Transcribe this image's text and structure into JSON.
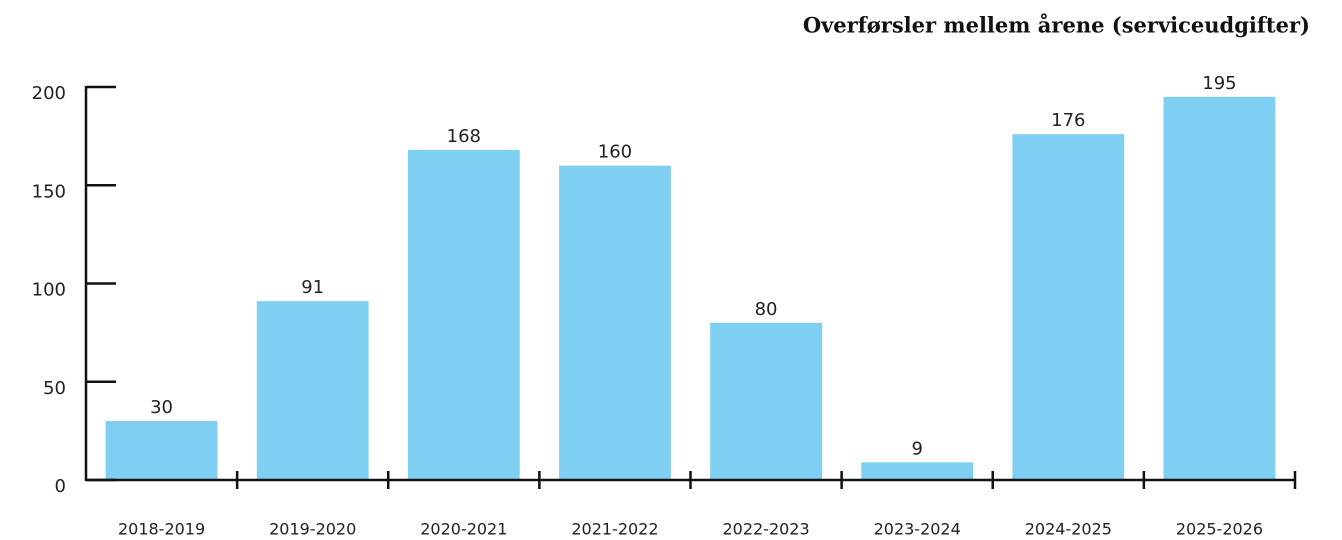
{
  "chart_data": {
    "type": "bar",
    "title": "Overførsler mellem årene (serviceudgifter)",
    "categories": [
      "2018-2019",
      "2019-2020",
      "2020-2021",
      "2021-2022",
      "2022-2023",
      "2023-2024",
      "2024-2025",
      "2025-2026"
    ],
    "values": [
      30,
      91,
      168,
      160,
      80,
      9,
      176,
      195
    ],
    "color": "#7fcff2",
    "ylim": [
      0,
      200
    ],
    "yticks": [
      0,
      50,
      100,
      150,
      200
    ]
  }
}
